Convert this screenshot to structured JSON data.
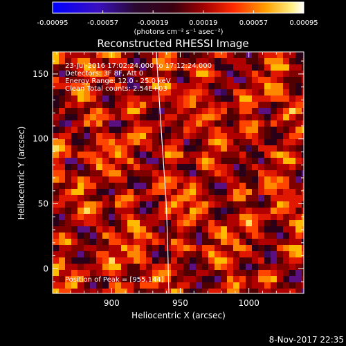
{
  "colorbar": {
    "tick_labels": [
      "-0.00095",
      "-0.00057",
      "-0.00019",
      "0.00019",
      "0.00057",
      "0.00095"
    ],
    "unit_label": "(photons cm⁻² s⁻¹ asec⁻²)",
    "range": [
      -0.00095,
      0.00095
    ],
    "colors": [
      "#1a00ff",
      "#5a0aa0",
      "#3a0a3a",
      "#8c0000",
      "#ff2a00",
      "#ffb000",
      "#ffffff"
    ]
  },
  "plot": {
    "title": "Reconstructed RHESSI Image",
    "xlabel": "Heliocentric X (arcsec)",
    "ylabel": "Heliocentric Y (arcsec)",
    "x_ticks": [
      "900",
      "950",
      "1000"
    ],
    "y_ticks": [
      "0",
      "50",
      "100",
      "150"
    ],
    "x_tick_values": [
      900,
      950,
      1000
    ],
    "y_tick_values": [
      0,
      50,
      100,
      150
    ],
    "xlim": [
      857,
      1040
    ],
    "ylim": [
      -19,
      167
    ],
    "annotations": [
      "23-Jul-2016 17:02:24.000 to 17:12:24.000",
      "Detectors: 3F 8F, Att 0",
      "Energy Range: 12.0 - 25.0 keV",
      "Clean    Total counts: 2.54E+03"
    ],
    "peak_label": "Position of Peak = [955,144]",
    "limb_color": "#ffffff"
  },
  "footer": {
    "timestamp": "8-Nov-2017 22:35"
  }
}
